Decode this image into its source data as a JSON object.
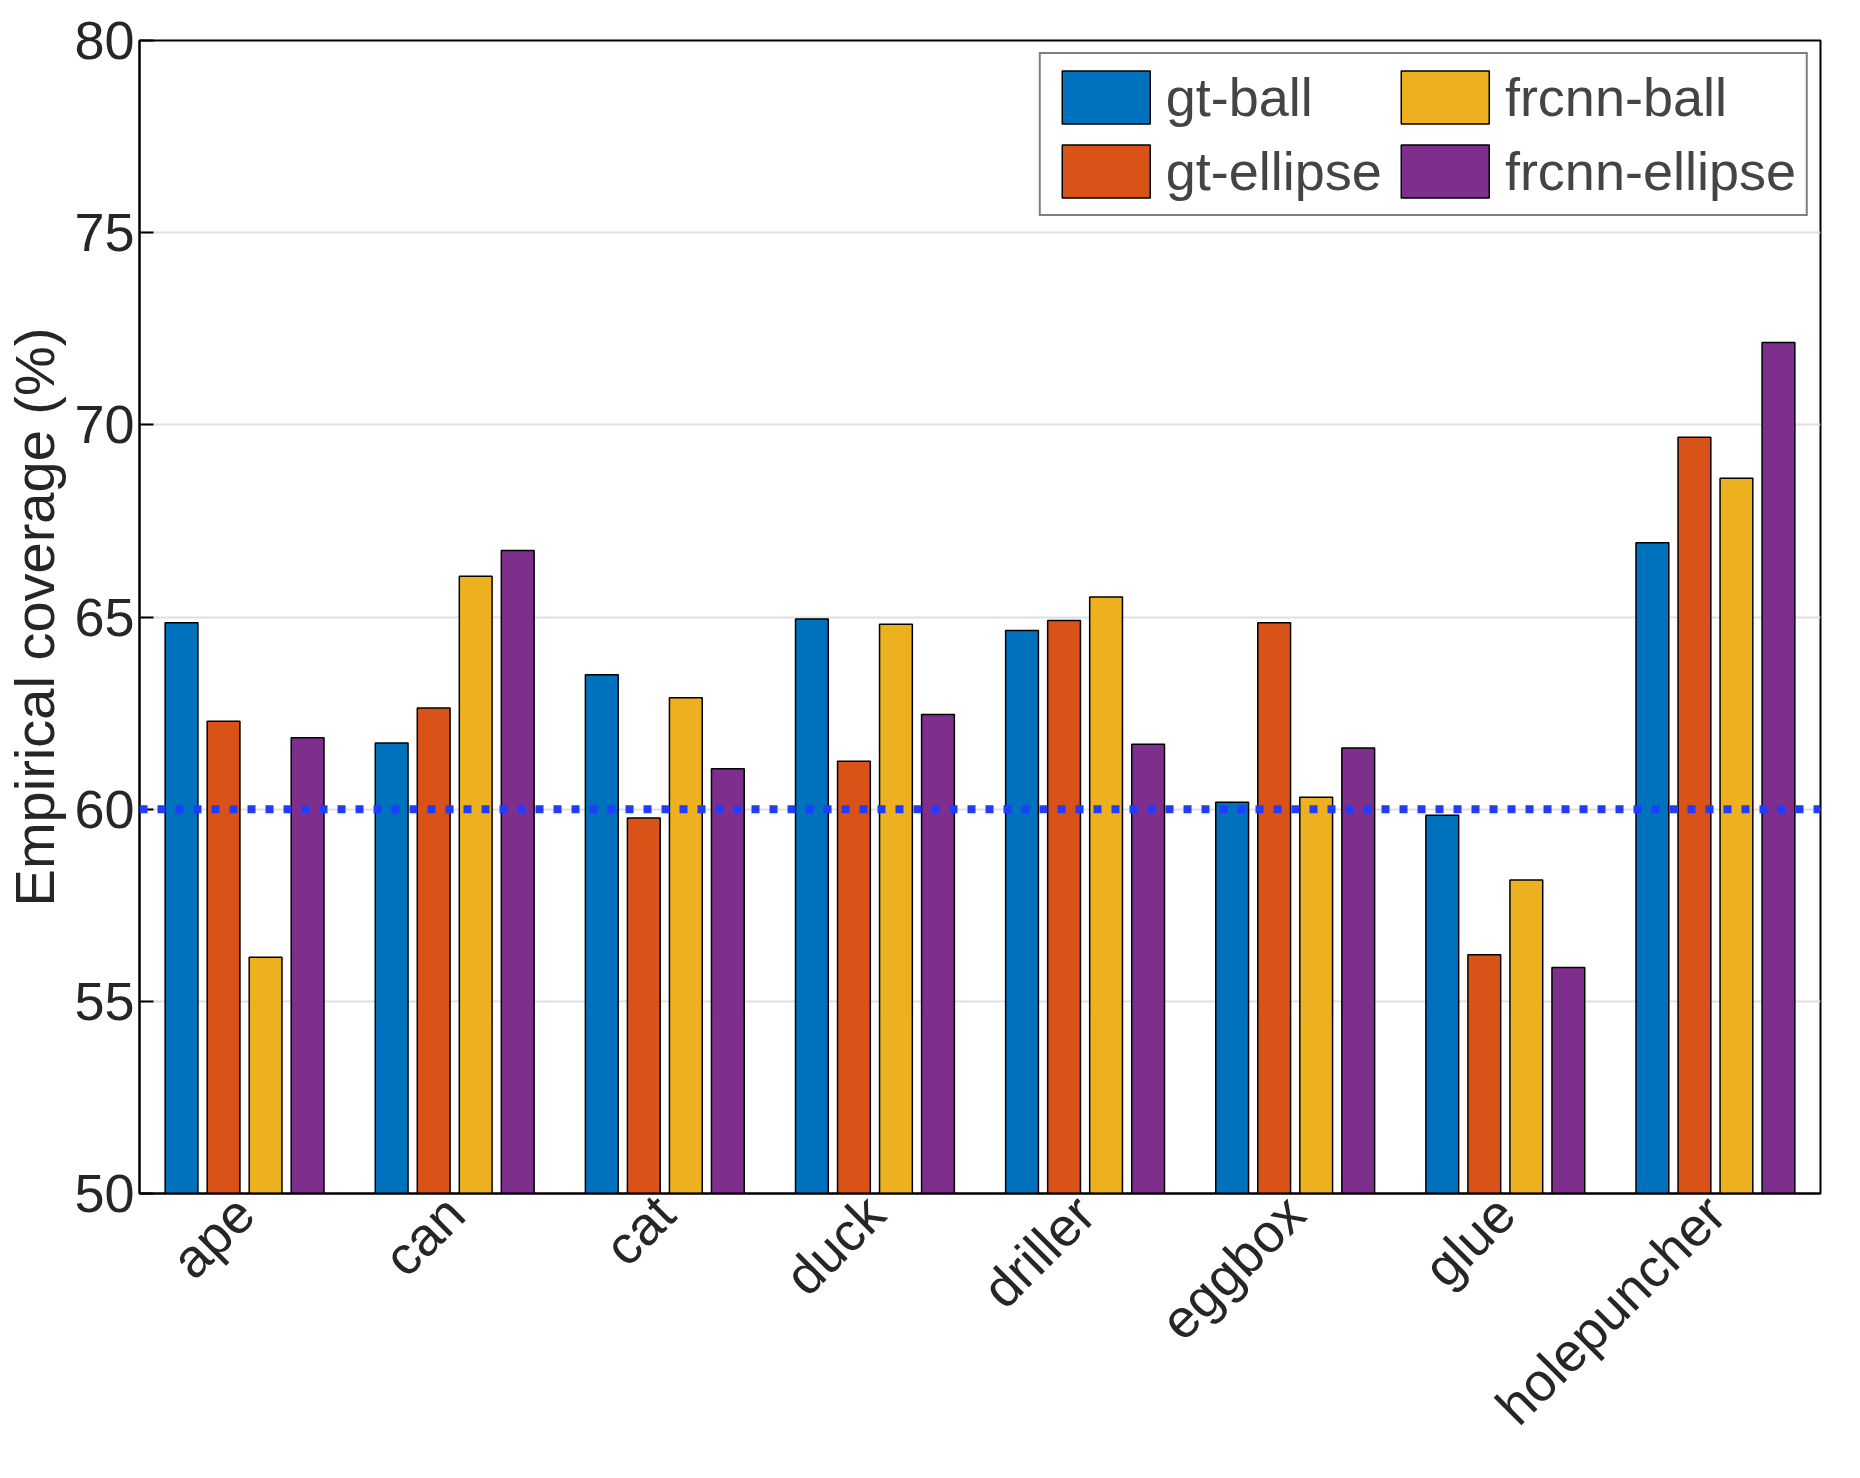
{
  "chart_data": {
    "type": "bar",
    "ylabel": "Empirical coverage (%)",
    "categories": [
      "ape",
      "can",
      "cat",
      "duck",
      "driller",
      "eggbox",
      "glue",
      "holepuncher"
    ],
    "series": [
      {
        "name": "gt-ball",
        "color": "#0072bd",
        "values": [
          64.85,
          61.72,
          63.5,
          64.95,
          64.65,
          60.18,
          59.84,
          66.93
        ]
      },
      {
        "name": "gt-ellipse",
        "color": "#d95319",
        "values": [
          62.29,
          62.63,
          59.77,
          61.25,
          64.91,
          64.85,
          56.21,
          69.68
        ]
      },
      {
        "name": "frcnn-ball",
        "color": "#edb120",
        "values": [
          56.15,
          66.06,
          62.9,
          64.81,
          65.52,
          60.31,
          58.16,
          68.61
        ]
      },
      {
        "name": "frcnn-ellipse",
        "color": "#7e2f8e",
        "values": [
          61.86,
          66.73,
          61.05,
          62.46,
          61.69,
          61.59,
          55.88,
          72.14
        ]
      }
    ],
    "ylim": [
      50,
      80
    ],
    "yticks": [
      50,
      55,
      60,
      65,
      70,
      75,
      80
    ],
    "grid": "y",
    "legend": "top right",
    "ref_lines": [
      {
        "axis": "y",
        "value": 60,
        "color": "#1f3cff",
        "line_style": "dotted"
      }
    ]
  }
}
